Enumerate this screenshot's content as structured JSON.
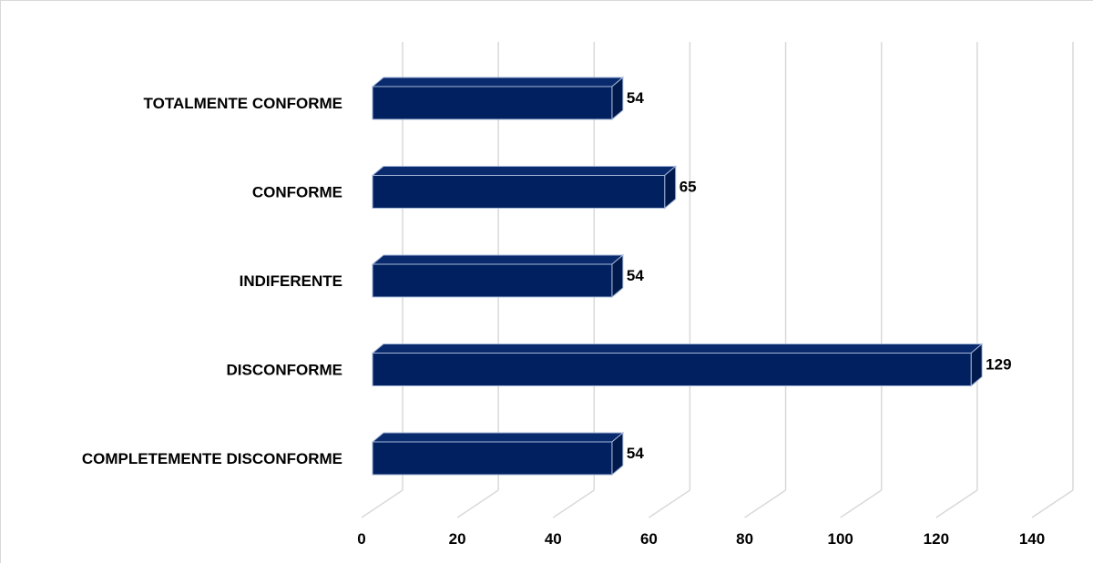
{
  "chart_data": {
    "type": "bar",
    "orientation": "horizontal",
    "style": "3d",
    "categories": [
      "TOTALMENTE CONFORME",
      "CONFORME",
      "INDIFERENTE",
      "DISCONFORME",
      "COMPLETEMENTE DISCONFORME"
    ],
    "values": [
      54,
      65,
      54,
      129,
      54
    ],
    "xlim": [
      0,
      140
    ],
    "x_ticks": [
      "0",
      "20",
      "40",
      "60",
      "80",
      "100",
      "120",
      "140"
    ],
    "grid": true,
    "legend": "none",
    "data_labels": true,
    "colors": {
      "bar": "#002060",
      "bar_top": "#0a2a6e",
      "bar_side": "#001a4d",
      "bar_edge": "#a6b8d8",
      "grid": "#d9d9d9"
    }
  }
}
